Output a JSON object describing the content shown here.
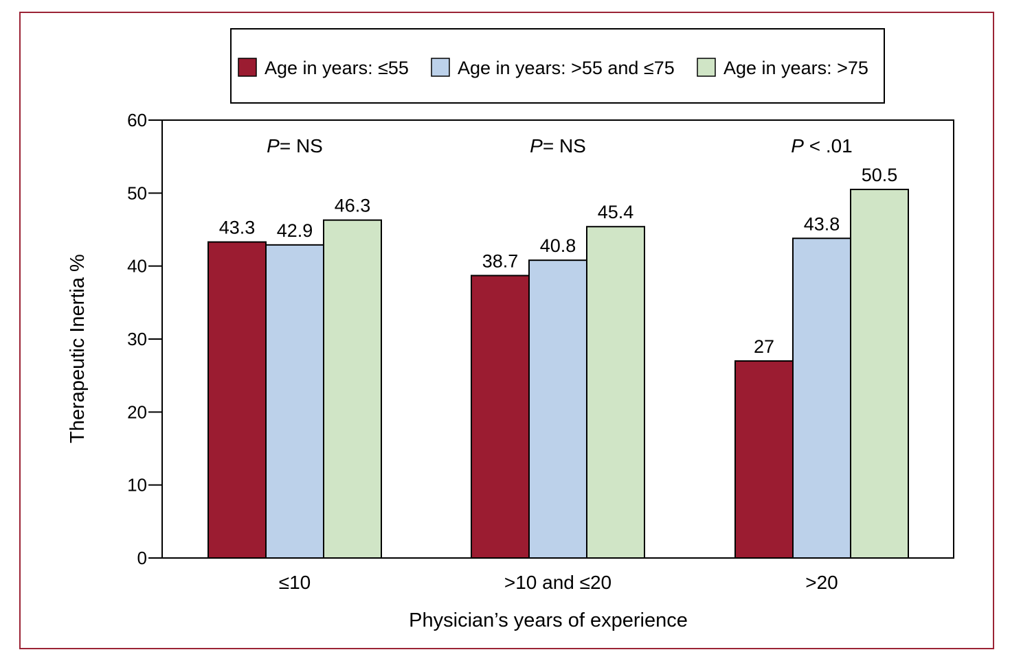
{
  "chart_data": {
    "type": "bar",
    "categories": [
      "≤10",
      ">10 and ≤20",
      ">20"
    ],
    "series": [
      {
        "name": "Age in years: ≤55",
        "values": [
          43.3,
          38.7,
          27
        ],
        "labels": [
          "43.3",
          "38.7",
          "27"
        ],
        "color": "#9b1c31"
      },
      {
        "name": "Age in years: >55 and ≤75",
        "values": [
          42.9,
          40.8,
          43.8
        ],
        "labels": [
          "42.9",
          "40.8",
          "43.8"
        ],
        "color": "#bcd1ea"
      },
      {
        "name": "Age in years: >75",
        "values": [
          46.3,
          45.4,
          50.5
        ],
        "labels": [
          "46.3",
          "45.4",
          "50.5"
        ],
        "color": "#d0e5c6"
      }
    ],
    "annotations": [
      {
        "italic": "P",
        "rest": "= NS"
      },
      {
        "italic": "P",
        "rest": "= NS"
      },
      {
        "italic": "P",
        "rest": " < .01"
      }
    ],
    "xlabel": "Physician’s years of experience",
    "ylabel": "Therapeutic Inertia %",
    "ylim": [
      0,
      60
    ],
    "yticks": [
      0,
      10,
      20,
      30,
      40,
      50,
      60
    ],
    "grid": false,
    "legend_position": "top"
  },
  "colors": {
    "frame": "#9b2335",
    "axis": "#000000"
  }
}
